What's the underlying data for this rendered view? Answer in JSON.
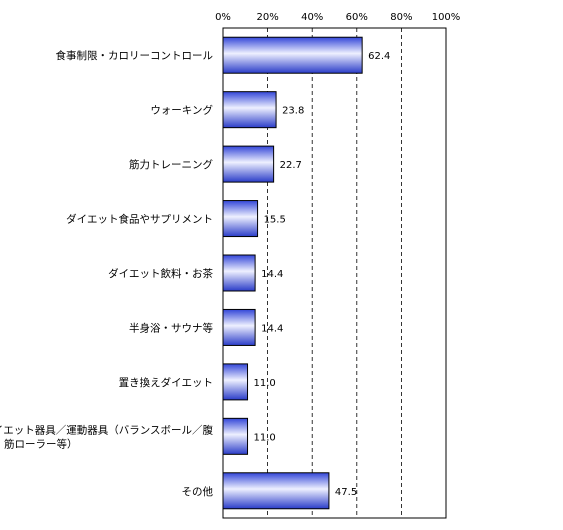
{
  "chart_data": {
    "type": "bar",
    "orientation": "horizontal",
    "categories": [
      [
        "食事制限・カロリーコントロール"
      ],
      [
        "ウォーキング"
      ],
      [
        "筋力トレーニング"
      ],
      [
        "ダイエット食品やサプリメント"
      ],
      [
        "ダイエット飲料・お茶"
      ],
      [
        "半身浴・サウナ等"
      ],
      [
        "置き換えダイエット"
      ],
      [
        "ダイエット器具／運動器具（バランスボール／腹",
        "筋ローラー等）"
      ],
      [
        "その他"
      ]
    ],
    "values": [
      62.4,
      23.8,
      22.7,
      15.5,
      14.4,
      14.4,
      11.0,
      11.0,
      47.5
    ],
    "value_labels": [
      "62.4",
      "23.8",
      "22.7",
      "15.5",
      "14.4",
      "14.4",
      "11.0",
      "11.0",
      "47.5"
    ],
    "xlim": [
      0,
      100
    ],
    "x_ticks": [
      "0%",
      "20%",
      "40%",
      "60%",
      "80%",
      "100%"
    ],
    "x_tick_values": [
      0,
      20,
      40,
      60,
      80,
      100
    ],
    "x_axis_position": "top",
    "grid": "vertical-dashed",
    "bar_colors": {
      "dark": "#2a3fd6",
      "light": "#eef0ff",
      "border": "#000000"
    }
  }
}
